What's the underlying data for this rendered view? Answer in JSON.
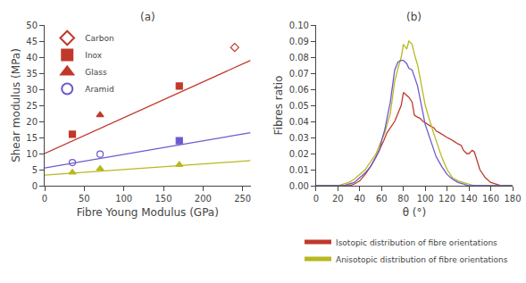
{
  "chart_data": [
    {
      "type": "scatter",
      "title": "(a)",
      "xlabel": "Fibre Young Modulus (GPa)",
      "ylabel": "Shear modulus (MPa)",
      "xlim": [
        0,
        260
      ],
      "ylim": [
        0,
        50
      ],
      "xticks": [
        0,
        50,
        100,
        150,
        200,
        250
      ],
      "yticks": [
        0,
        5,
        10,
        15,
        20,
        25,
        30,
        35,
        40,
        45,
        50
      ],
      "grid": false,
      "legend": "upper left",
      "series": [
        {
          "type": "line",
          "color": "#c0392b",
          "x": [
            0,
            260
          ],
          "values": [
            10.0,
            39.0
          ]
        },
        {
          "type": "line",
          "color": "#b8b820",
          "x": [
            0,
            260
          ],
          "values": [
            3.3,
            7.8
          ]
        },
        {
          "type": "line",
          "color": "#6a5acd",
          "x": [
            0,
            260
          ],
          "values": [
            5.5,
            16.5
          ]
        },
        {
          "name": "Carbon",
          "type": "scatter",
          "color": "#c0392b",
          "marker": "diamond-open",
          "x": [
            240
          ],
          "values": [
            43
          ]
        },
        {
          "name": "Inox",
          "type": "scatter",
          "color": "#c0392b",
          "marker": "square",
          "x": [
            35,
            170
          ],
          "values": [
            16,
            31
          ]
        },
        {
          "name": "Glass",
          "type": "scatter",
          "color": "#c0392b",
          "marker": "triangle-up",
          "x": [
            70
          ],
          "values": [
            22
          ]
        },
        {
          "name": "Glass",
          "type": "scatter",
          "color": "#b8b820",
          "marker": "triangle-up",
          "x": [
            35,
            70,
            170
          ],
          "values": [
            4.1,
            5.3,
            6.5
          ]
        },
        {
          "name": "Aramid",
          "type": "scatter",
          "color": "#6a5acd",
          "marker": "circle-open",
          "x": [
            35,
            70
          ],
          "values": [
            7.2,
            9.8
          ]
        },
        {
          "name": "Inox",
          "type": "scatter",
          "color": "#6a5acd",
          "marker": "square",
          "x": [
            170
          ],
          "values": [
            14.0
          ]
        }
      ]
    },
    {
      "type": "line",
      "title": "(b)",
      "xlabel": "θ (°)",
      "ylabel": "Fibres ratio",
      "xlim": [
        0,
        180
      ],
      "ylim": [
        0,
        0.1
      ],
      "xticks": [
        0,
        20,
        40,
        60,
        80,
        100,
        120,
        140,
        160,
        180
      ],
      "yticks": [
        {
          "value": 0,
          "label": "0.00"
        },
        {
          "value": 0.01,
          "label": "0.01"
        },
        {
          "value": 0.02,
          "label": "0.02"
        },
        {
          "value": 0.03,
          "label": "0.03"
        },
        {
          "value": 0.04,
          "label": "0.04"
        },
        {
          "value": 0.05,
          "label": "0.05"
        },
        {
          "value": 0.06,
          "label": "0.06"
        },
        {
          "value": 0.07,
          "label": "0.07"
        },
        {
          "value": 0.08,
          "label": "0.08"
        },
        {
          "value": 0.09,
          "label": "0.09"
        },
        {
          "value": 0.1,
          "label": "0.10"
        }
      ],
      "grid": false,
      "legend": "lower right",
      "series": [
        {
          "name": "Isotopic distribution of fibre orientations",
          "type": "line",
          "color": "#c0392b",
          "x": [
            0,
            5,
            10,
            15,
            20,
            25,
            30,
            35,
            40,
            45,
            50,
            55,
            60,
            62,
            65,
            68,
            70,
            72,
            75,
            78,
            80,
            83,
            85,
            88,
            90,
            92,
            95,
            98,
            100,
            103,
            105,
            108,
            110,
            113,
            115,
            118,
            120,
            123,
            125,
            128,
            130,
            133,
            135,
            138,
            140,
            143,
            145,
            150,
            155,
            160,
            165,
            170,
            175,
            180
          ],
          "values": [
            0,
            0,
            0,
            0,
            0,
            0,
            0,
            0.001,
            0.003,
            0.007,
            0.012,
            0.018,
            0.025,
            0.028,
            0.033,
            0.036,
            0.038,
            0.04,
            0.045,
            0.05,
            0.058,
            0.056,
            0.055,
            0.052,
            0.044,
            0.043,
            0.042,
            0.04,
            0.039,
            0.038,
            0.037,
            0.036,
            0.034,
            0.033,
            0.032,
            0.031,
            0.03,
            0.029,
            0.028,
            0.027,
            0.026,
            0.025,
            0.022,
            0.02,
            0.02,
            0.022,
            0.021,
            0.01,
            0.005,
            0.002,
            0.001,
            0,
            0,
            0
          ]
        },
        {
          "name": "Anisotopic distribution of fibre orientations",
          "type": "line",
          "color": "#b8b820",
          "x": [
            0,
            5,
            10,
            15,
            20,
            25,
            30,
            35,
            40,
            45,
            50,
            55,
            58,
            60,
            63,
            65,
            68,
            70,
            72,
            75,
            78,
            80,
            83,
            85,
            88,
            90,
            93,
            95,
            98,
            100,
            103,
            105,
            108,
            110,
            115,
            120,
            125,
            130,
            135,
            140,
            145,
            150,
            155,
            160,
            165,
            170,
            175,
            180
          ],
          "values": [
            0,
            0,
            0,
            0,
            0,
            0.001,
            0.002,
            0.004,
            0.007,
            0.01,
            0.015,
            0.02,
            0.025,
            0.028,
            0.033,
            0.038,
            0.045,
            0.055,
            0.065,
            0.073,
            0.08,
            0.088,
            0.085,
            0.09,
            0.088,
            0.082,
            0.075,
            0.068,
            0.058,
            0.05,
            0.043,
            0.038,
            0.032,
            0.028,
            0.018,
            0.01,
            0.005,
            0.003,
            0.002,
            0.001,
            0,
            0,
            0,
            0,
            0,
            0,
            0,
            0
          ]
        },
        {
          "type": "line",
          "color": "#6a5acd",
          "x": [
            0,
            5,
            10,
            15,
            20,
            25,
            30,
            35,
            40,
            45,
            50,
            55,
            58,
            60,
            63,
            65,
            68,
            70,
            72,
            75,
            78,
            80,
            83,
            85,
            88,
            90,
            93,
            95,
            98,
            100,
            103,
            105,
            108,
            110,
            115,
            120,
            125,
            130,
            135,
            140,
            145,
            150,
            155,
            160,
            165,
            170,
            175,
            180
          ],
          "values": [
            0,
            0,
            0,
            0,
            0,
            0,
            0.001,
            0.002,
            0.005,
            0.008,
            0.012,
            0.018,
            0.022,
            0.028,
            0.035,
            0.042,
            0.052,
            0.062,
            0.072,
            0.077,
            0.078,
            0.078,
            0.076,
            0.073,
            0.072,
            0.068,
            0.062,
            0.055,
            0.045,
            0.038,
            0.032,
            0.028,
            0.022,
            0.018,
            0.012,
            0.007,
            0.004,
            0.002,
            0.001,
            0,
            0,
            0,
            0,
            0,
            0,
            0,
            0,
            0
          ]
        }
      ]
    }
  ]
}
